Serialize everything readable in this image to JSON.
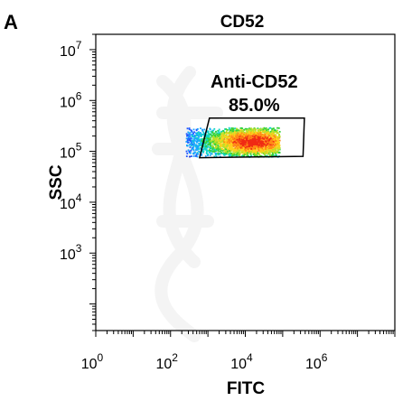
{
  "panel_label": "A",
  "chart_data": {
    "type": "scatter",
    "title": "CD52",
    "xlabel": "FITC",
    "ylabel": "SSC",
    "x_scale": "log",
    "y_scale": "log",
    "xlim": [
      1,
      100000000
    ],
    "ylim": [
      30,
      20000000
    ],
    "x_ticks": [
      {
        "base": "10",
        "exp": "0",
        "value": 1
      },
      {
        "base": "10",
        "exp": "2",
        "value": 100
      },
      {
        "base": "10",
        "exp": "4",
        "value": 10000
      },
      {
        "base": "10",
        "exp": "6",
        "value": 1000000
      }
    ],
    "y_ticks": [
      {
        "base": "10",
        "exp": "3",
        "value": 1000
      },
      {
        "base": "10",
        "exp": "4",
        "value": 10000
      },
      {
        "base": "10",
        "exp": "5",
        "value": 100000
      },
      {
        "base": "10",
        "exp": "6",
        "value": 1000000
      },
      {
        "base": "10",
        "exp": "7",
        "value": 10000000
      }
    ],
    "grid": false,
    "population": {
      "x_range": [
        250,
        80000
      ],
      "y_range": [
        80000,
        300000
      ],
      "densest": [
        15000,
        160000
      ]
    },
    "gate": {
      "name": "Anti-CD52",
      "percent": "85.0%",
      "vertices": [
        [
          600,
          75000
        ],
        [
          1100,
          450000
        ],
        [
          380000,
          450000
        ],
        [
          350000,
          80000
        ]
      ]
    }
  }
}
